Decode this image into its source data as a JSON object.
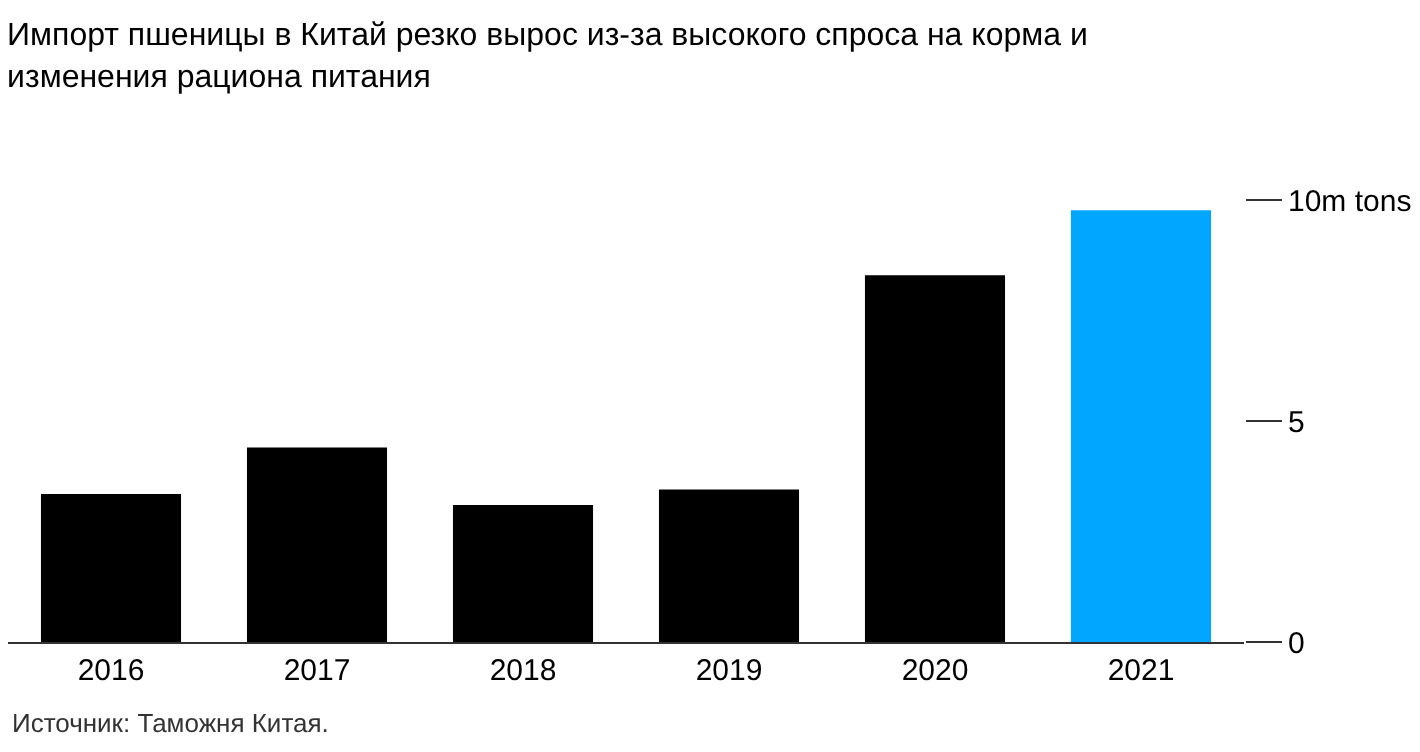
{
  "chart_data": {
    "type": "bar",
    "title": "Импорт пшеницы в Китай резко вырос из-за высокого спроса на корма и изменения рациона питания",
    "categories": [
      "2016",
      "2017",
      "2018",
      "2019",
      "2020",
      "2021"
    ],
    "values": [
      3.35,
      4.4,
      3.1,
      3.45,
      8.3,
      9.77
    ],
    "colors": [
      "#000000",
      "#000000",
      "#000000",
      "#000000",
      "#000000",
      "#00a6ff"
    ],
    "ylim": [
      0,
      10
    ],
    "yticks": [
      0,
      5,
      {
        "value": 10,
        "label": "10m tons"
      }
    ],
    "annotations": [
      "Источник: Таможня Китая."
    ]
  }
}
